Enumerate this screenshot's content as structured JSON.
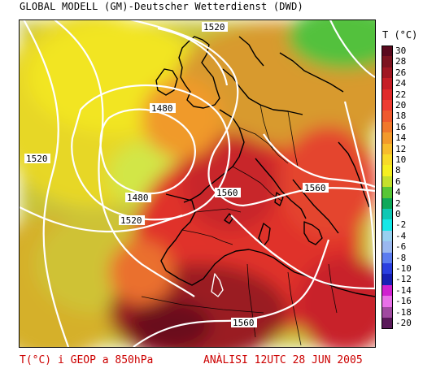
{
  "header": {
    "title": "GLOBAL MODELL (GM)-Deutscher Wetterdienst (DWD)"
  },
  "footer": {
    "variable": "T(°C) i GEOP a 850hPa",
    "analysis": "ANÀLISI 12UTC 28 JUN 2005"
  },
  "legend": {
    "unit": "T (°C)",
    "levels": [
      {
        "label": "30",
        "color": "#5a0a1e"
      },
      {
        "label": "28",
        "color": "#7d1420"
      },
      {
        "label": "26",
        "color": "#a01823"
      },
      {
        "label": "24",
        "color": "#c61f26"
      },
      {
        "label": "22",
        "color": "#e02a2a"
      },
      {
        "label": "20",
        "color": "#ee3c31"
      },
      {
        "label": "18",
        "color": "#ef5a2e"
      },
      {
        "label": "16",
        "color": "#f0782b"
      },
      {
        "label": "14",
        "color": "#f39a2b"
      },
      {
        "label": "12",
        "color": "#f7bc2c"
      },
      {
        "label": "10",
        "color": "#f8da28"
      },
      {
        "label": "8",
        "color": "#f6ef20"
      },
      {
        "label": "6",
        "color": "#c4e02c"
      },
      {
        "label": "4",
        "color": "#58c636"
      },
      {
        "label": "2",
        "color": "#0fa85a"
      },
      {
        "label": "0",
        "color": "#10c8b4"
      },
      {
        "label": "-2",
        "color": "#16e8e8"
      },
      {
        "label": "-4",
        "color": "#98d0f0"
      },
      {
        "label": "-6",
        "color": "#9ab8f0"
      },
      {
        "label": "-8",
        "color": "#5b7cf0"
      },
      {
        "label": "-10",
        "color": "#2b3fe0"
      },
      {
        "label": "-12",
        "color": "#1820b4"
      },
      {
        "label": "-14",
        "color": "#d020d0"
      },
      {
        "label": "-16",
        "color": "#e870e8"
      },
      {
        "label": "-18",
        "color": "#a04aa0"
      },
      {
        "label": "-20",
        "color": "#5a1a5a"
      }
    ]
  },
  "isolines": {
    "labels": [
      "1520",
      "1480",
      "1520",
      "1480",
      "1520",
      "1560",
      "1560",
      "1560"
    ],
    "color": "#ffffff"
  }
}
